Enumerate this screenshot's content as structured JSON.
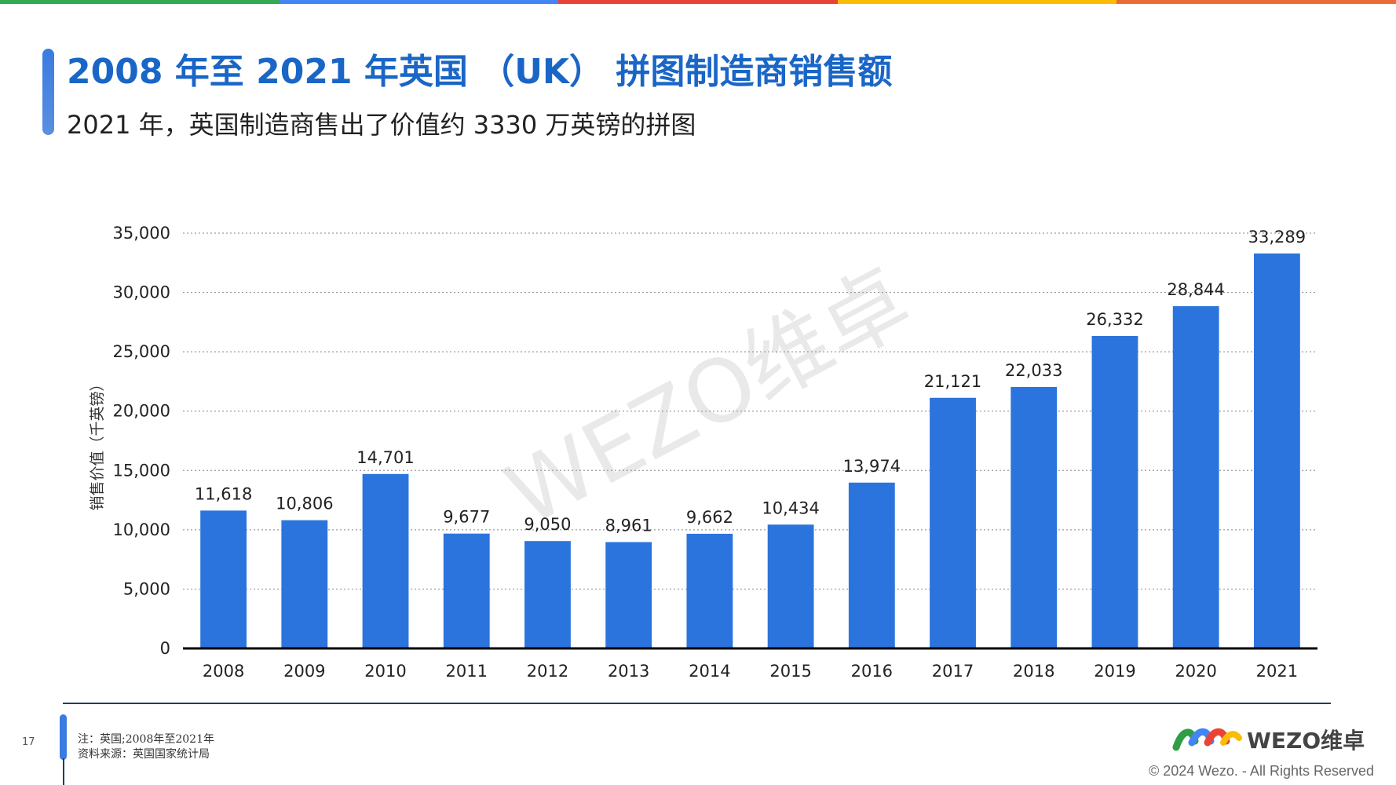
{
  "header": {
    "title": "2008 年至 2021 年英国 （UK） 拼图制造商销售额",
    "subtitle": "2021 年，英国制造商售出了价值约 3330 万英镑的拼图",
    "stripe_colors": [
      "#34a853",
      "#4285f4",
      "#ea4335",
      "#fbbc05",
      "#ea6b35"
    ]
  },
  "watermark": "WEZO维卓",
  "chart_data": {
    "type": "bar",
    "categories": [
      "2008",
      "2009",
      "2010",
      "2011",
      "2012",
      "2013",
      "2014",
      "2015",
      "2016",
      "2017",
      "2018",
      "2019",
      "2020",
      "2021"
    ],
    "values": [
      11618,
      10806,
      14701,
      9677,
      9050,
      8961,
      9662,
      10434,
      13974,
      21121,
      22033,
      26332,
      28844,
      33289
    ],
    "data_labels": [
      "11,618",
      "10,806",
      "14,701",
      "9,677",
      "9,050",
      "8,961",
      "9,662",
      "10,434",
      "13,974",
      "21,121",
      "22,033",
      "26,332",
      "28,844",
      "33,289"
    ],
    "ylabel": "销售价值（千英镑）",
    "ylim": [
      0,
      35000
    ],
    "yticks": [
      "0",
      "5,000",
      "10,000",
      "15,000",
      "20,000",
      "25,000",
      "30,000",
      "35,000"
    ],
    "grid": true,
    "bar_color": "#2b74de"
  },
  "footer": {
    "page_number": "17",
    "note": "注：英国;2008年至2021年",
    "source": "资料来源：英国国家统计局",
    "logo_text": "WEZO维卓",
    "copyright": "© 2024 Wezo. - All Rights Reserved"
  }
}
